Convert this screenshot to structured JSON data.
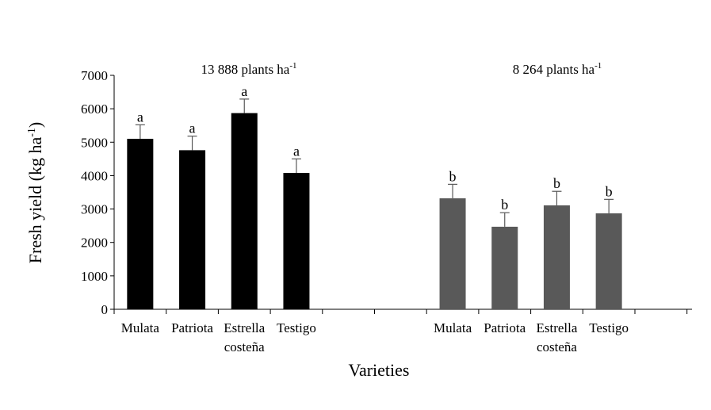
{
  "chart_data": {
    "type": "bar",
    "ylabel": "Fresh yield (kg ha",
    "ylabel_sup": "-1",
    "ylabel_close": ")",
    "xlabel": "Varieties",
    "ylim": [
      0,
      7000
    ],
    "yticks": [
      0,
      1000,
      2000,
      3000,
      4000,
      5000,
      6000,
      7000
    ],
    "groups": [
      {
        "label_main": "13 888 plants ha",
        "label_sup": "-1",
        "color": "#000000",
        "bars": [
          {
            "category": "Mulata",
            "category_line2": "",
            "value": 5100,
            "error": 420,
            "letter": "a"
          },
          {
            "category": "Patriota",
            "category_line2": "",
            "value": 4760,
            "error": 420,
            "letter": "a"
          },
          {
            "category": "Estrella",
            "category_line2": "costeña",
            "value": 5870,
            "error": 420,
            "letter": "a"
          },
          {
            "category": "Testigo",
            "category_line2": "",
            "value": 4080,
            "error": 420,
            "letter": "a"
          }
        ]
      },
      {
        "label_main": "8 264 plants ha",
        "label_sup": "-1",
        "color": "#595959",
        "bars": [
          {
            "category": "Mulata",
            "category_line2": "",
            "value": 3320,
            "error": 420,
            "letter": "b"
          },
          {
            "category": "Patriota",
            "category_line2": "",
            "value": 2470,
            "error": 420,
            "letter": "b"
          },
          {
            "category": "Estrella",
            "category_line2": "costeña",
            "value": 3110,
            "error": 420,
            "letter": "b"
          },
          {
            "category": "Testigo",
            "category_line2": "",
            "value": 2870,
            "error": 420,
            "letter": "b"
          }
        ]
      }
    ]
  }
}
